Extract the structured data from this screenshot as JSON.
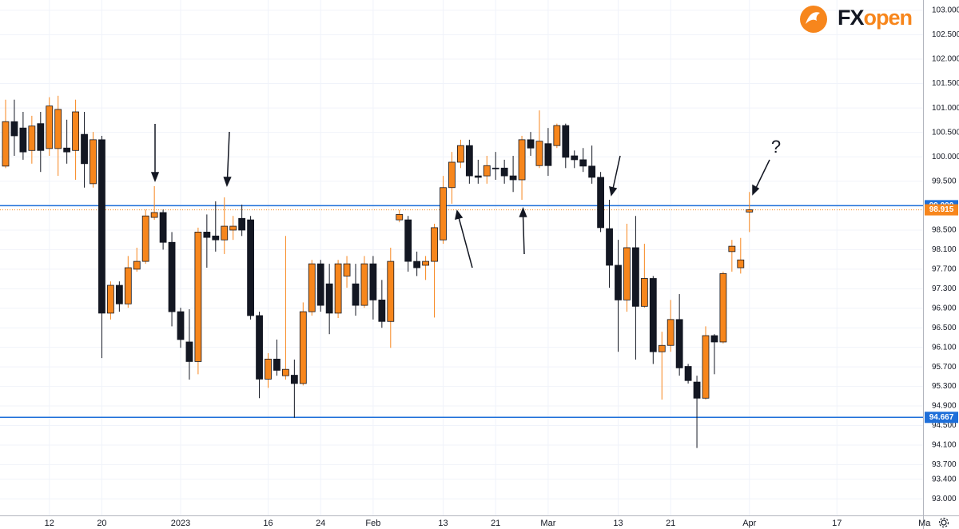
{
  "chart_data": {
    "type": "candlestick",
    "logo": [
      "FX",
      "open"
    ],
    "annotations": [
      "?"
    ],
    "categories": [
      null,
      null,
      null,
      null,
      null,
      "12",
      null,
      null,
      null,
      null,
      null,
      "20",
      null,
      null,
      null,
      null,
      null,
      null,
      null,
      null,
      "2023",
      null,
      null,
      null,
      null,
      null,
      null,
      null,
      null,
      null,
      "16",
      null,
      null,
      null,
      null,
      null,
      "24",
      null,
      null,
      null,
      null,
      null,
      "Feb",
      null,
      null,
      null,
      null,
      null,
      null,
      null,
      "13",
      null,
      null,
      null,
      null,
      null,
      "21",
      null,
      null,
      null,
      null,
      null,
      "Mar",
      null,
      null,
      null,
      null,
      null,
      null,
      null,
      "13",
      null,
      null,
      null,
      null,
      null,
      "21",
      null,
      null,
      null,
      null,
      null,
      null,
      null,
      null,
      "Apr",
      null,
      null,
      null,
      null,
      null,
      null,
      null,
      null,
      null,
      "17",
      null,
      null,
      null,
      null,
      null,
      null,
      null,
      null,
      null,
      "Ma"
    ],
    "open": [
      99.81,
      100.72,
      100.59,
      100.13,
      100.68,
      100.17,
      100.17,
      100.18,
      100.13,
      100.46,
      99.45,
      100.35,
      96.8,
      97.37,
      96.99,
      97.7,
      97.86,
      98.76,
      98.86,
      98.25,
      96.83,
      96.21,
      95.81,
      98.46,
      98.38,
      98.3,
      98.5,
      98.74,
      98.71,
      96.75,
      95.45,
      95.86,
      95.52,
      95.53,
      95.36,
      96.83,
      97.81,
      97.4,
      96.8,
      97.56,
      97.4,
      96.96,
      97.81,
      97.07,
      96.63,
      98.71,
      98.71,
      97.86,
      97.78,
      97.86,
      98.3,
      99.37,
      99.89,
      100.23,
      99.61,
      99.61,
      99.77,
      99.77,
      99.61,
      99.53,
      100.35,
      99.82,
      100.27,
      100.23,
      100.64,
      100.02,
      99.94,
      99.81,
      99.58,
      98.53,
      97.78,
      97.07,
      98.14,
      96.94,
      97.51,
      96.01,
      96.14,
      96.67,
      95.71,
      95.39,
      95.06,
      96.34,
      96.21,
      98.06,
      97.73,
      98.87,
      null,
      null,
      null,
      null,
      null,
      null,
      null,
      null,
      null,
      null,
      null,
      null,
      null,
      null,
      null,
      null,
      null,
      null,
      null,
      null
    ],
    "high": [
      101.17,
      101.17,
      100.92,
      100.84,
      100.92,
      101.22,
      101.25,
      100.76,
      101.17,
      100.92,
      100.51,
      100.43,
      97.45,
      97.45,
      97.97,
      98.14,
      98.92,
      99.4,
      98.92,
      98.46,
      96.91,
      96.88,
      98.55,
      98.82,
      99.09,
      99.17,
      98.79,
      99.02,
      98.79,
      96.83,
      95.98,
      96.26,
      98.38,
      95.85,
      97.02,
      97.89,
      97.89,
      97.81,
      97.89,
      97.97,
      97.81,
      97.97,
      97.97,
      97.48,
      98.14,
      98.91,
      98.79,
      98.06,
      97.97,
      98.63,
      99.61,
      100.1,
      100.35,
      100.35,
      99.94,
      100.02,
      100.1,
      99.94,
      100.02,
      100.43,
      100.51,
      100.95,
      100.59,
      100.68,
      100.68,
      100.13,
      100.18,
      100.23,
      99.69,
      99.12,
      98.3,
      98.63,
      98.79,
      98.22,
      97.56,
      96.42,
      97.07,
      97.19,
      95.76,
      95.52,
      96.53,
      96.37,
      97.65,
      98.3,
      98.34,
      99.28,
      null,
      null,
      null,
      null,
      null,
      null,
      null,
      null,
      null,
      null,
      null,
      null,
      null,
      null,
      null,
      null,
      null,
      null,
      null,
      null
    ],
    "low": [
      99.77,
      100.02,
      99.94,
      99.86,
      99.69,
      100.02,
      99.61,
      99.86,
      99.53,
      99.37,
      99.37,
      95.88,
      96.67,
      96.83,
      96.91,
      97.65,
      97.81,
      98.71,
      98.1,
      96.53,
      96.09,
      95.44,
      95.55,
      97.73,
      98.06,
      98.01,
      98.3,
      98.38,
      96.67,
      95.06,
      95.27,
      95.52,
      95.44,
      94.66,
      95.32,
      96.75,
      96.83,
      96.37,
      96.7,
      97.32,
      96.75,
      96.91,
      96.67,
      96.5,
      96.09,
      98.66,
      97.65,
      97.56,
      97.48,
      96.71,
      98.22,
      99.04,
      99.77,
      99.45,
      99.45,
      99.45,
      99.53,
      99.45,
      99.28,
      99.12,
      100.02,
      99.77,
      99.61,
      100.18,
      99.77,
      99.77,
      99.69,
      99.45,
      98.46,
      97.32,
      96.01,
      96.83,
      95.85,
      96.91,
      95.76,
      95.03,
      96.01,
      95.52,
      95.36,
      94.04,
      95.03,
      95.55,
      96.18,
      97.65,
      97.61,
      98.46,
      null,
      null,
      null,
      null,
      null,
      null,
      null,
      null,
      null,
      null,
      null,
      null,
      null,
      null,
      null,
      null,
      null,
      null,
      null,
      null
    ],
    "close": [
      100.72,
      100.43,
      100.1,
      100.63,
      100.13,
      101.04,
      100.97,
      100.1,
      100.92,
      99.86,
      100.35,
      96.8,
      97.37,
      96.99,
      97.73,
      97.86,
      98.79,
      98.86,
      98.25,
      96.83,
      96.26,
      95.81,
      98.46,
      98.35,
      98.3,
      98.58,
      98.58,
      98.5,
      96.75,
      95.45,
      95.86,
      95.63,
      95.65,
      95.36,
      96.83,
      97.81,
      96.96,
      96.8,
      97.81,
      97.81,
      96.96,
      97.81,
      97.07,
      96.63,
      97.86,
      98.82,
      97.86,
      97.73,
      97.86,
      98.55,
      99.37,
      99.89,
      100.23,
      99.61,
      99.58,
      99.82,
      99.76,
      99.61,
      99.53,
      100.35,
      100.18,
      100.32,
      99.82,
      100.64,
      99.99,
      99.94,
      99.81,
      99.58,
      98.55,
      97.78,
      97.07,
      98.14,
      96.94,
      97.51,
      96.01,
      96.14,
      96.67,
      95.68,
      95.42,
      95.06,
      96.34,
      96.21,
      97.61,
      98.17,
      97.89,
      98.915,
      null,
      null,
      null,
      null,
      null,
      null,
      null,
      null,
      null,
      null,
      null,
      null,
      null,
      null,
      null,
      null,
      null,
      null,
      null,
      null
    ],
    "up_color": "#f7861c",
    "down_color": "#131722",
    "ylim": [
      92.66,
      103.21
    ],
    "yticks": [
      {
        "value": 103,
        "label": "103.000"
      },
      {
        "value": 102.5,
        "label": "102.500"
      },
      {
        "value": 102,
        "label": "102.000"
      },
      {
        "value": 101.5,
        "label": "101.500"
      },
      {
        "value": 101,
        "label": "101.000"
      },
      {
        "value": 100.5,
        "label": "100.500"
      },
      {
        "value": 100,
        "label": "100.000"
      },
      {
        "value": 99.5,
        "label": "99.500"
      },
      {
        "value": 98.5,
        "label": "98.500"
      },
      {
        "value": 98.1,
        "label": "98.100"
      },
      {
        "value": 97.7,
        "label": "97.700"
      },
      {
        "value": 97.3,
        "label": "97.300"
      },
      {
        "value": 96.9,
        "label": "96.900"
      },
      {
        "value": 96.5,
        "label": "96.500"
      },
      {
        "value": 96.1,
        "label": "96.100"
      },
      {
        "value": 95.7,
        "label": "95.700"
      },
      {
        "value": 95.3,
        "label": "95.300"
      },
      {
        "value": 94.9,
        "label": "94.900"
      },
      {
        "value": 94.5,
        "label": "94.500"
      },
      {
        "value": 94.1,
        "label": "94.100"
      },
      {
        "value": 93.7,
        "label": "93.700"
      },
      {
        "value": 93.4,
        "label": "93.400"
      },
      {
        "value": 93,
        "label": "93.000"
      }
    ],
    "hlines": [
      {
        "value": 99,
        "label": "99.000",
        "color": "#1e6fd9",
        "style": "solid"
      },
      {
        "value": 98.915,
        "label": "98.915",
        "color": "#f7861c",
        "style": "dotted"
      },
      {
        "value": 94.667,
        "label": "94.667",
        "color": "#1e6fd9",
        "style": "solid"
      }
    ],
    "grid": true
  }
}
